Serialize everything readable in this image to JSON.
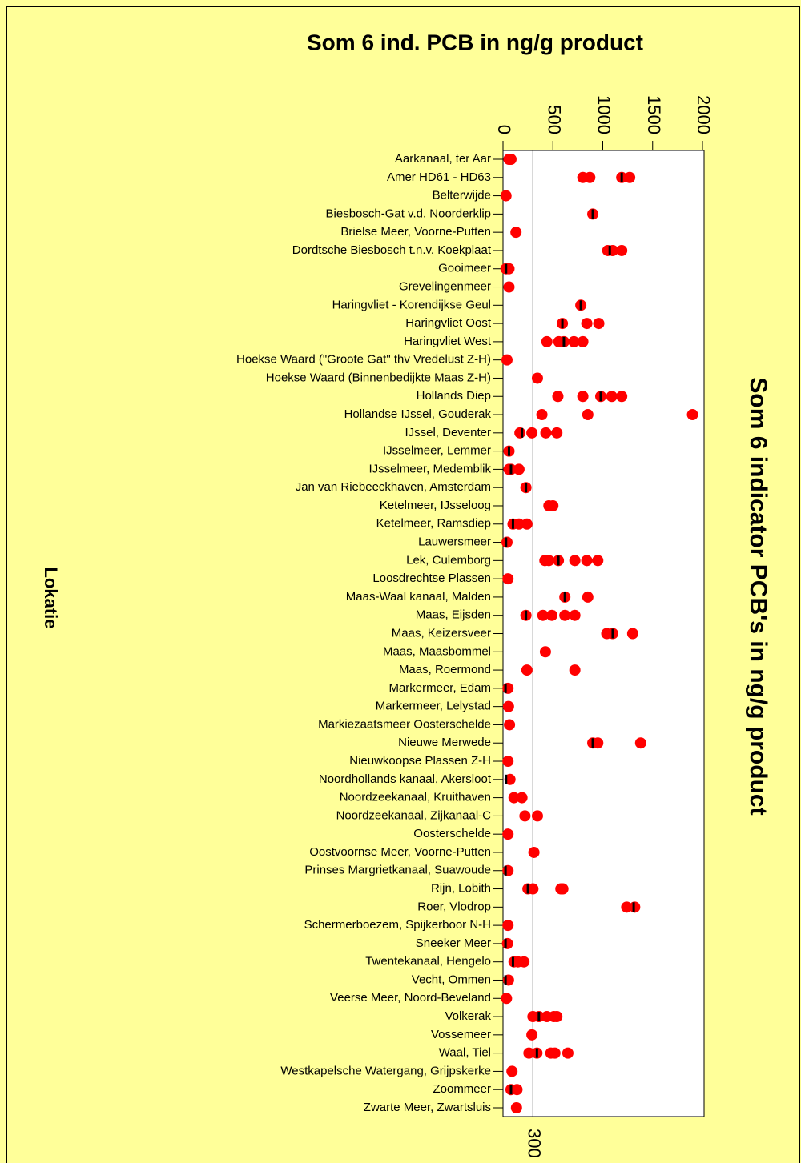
{
  "chart_data": {
    "type": "dotplot",
    "title": "Som 6 ind. PCB in ng/g product",
    "value_axis_label": "Som 6 indicator PCB's in ng/g product",
    "category_axis_label": "Lokatie",
    "categories": [
      "Aarkanaal, ter Aar",
      "Amer HD61 - HD63",
      "Belterwijde",
      "Biesbosch-Gat v.d. Noorderklip",
      "Brielse Meer, Voorne-Putten",
      "Dordtsche Biesbosch t.n.v. Koekplaat",
      "Gooimeer",
      "Grevelingenmeer",
      "Haringvliet - Korendijkse Geul",
      "Haringvliet Oost",
      "Haringvliet West",
      "Hoekse Waard (\"Groote Gat\" thv Vredelust Z-H)",
      "Hoekse Waard (Binnenbedijkte Maas Z-H)",
      "Hollands Diep",
      "Hollandse IJssel, Gouderak",
      "IJssel, Deventer",
      "IJsselmeer, Lemmer",
      "IJsselmeer, Medemblik",
      "Jan van Riebeeckhaven, Amsterdam",
      "Ketelmeer, IJsseloog",
      "Ketelmeer, Ramsdiep",
      "Lauwersmeer",
      "Lek, Culemborg",
      "Loosdrechtse Plassen",
      "Maas-Waal kanaal, Malden",
      "Maas, Eijsden",
      "Maas, Keizersveer",
      "Maas, Maasbommel",
      "Maas, Roermond",
      "Markermeer, Edam",
      "Markermeer, Lelystad",
      "Markiezaatsmeer Oosterschelde",
      "Nieuwe Merwede",
      "Nieuwkoopse Plassen Z-H",
      "Noordhollands kanaal, Akersloot",
      "Noordzeekanaal, Kruithaven",
      "Noordzeekanaal, Zijkanaal-C",
      "Oosterschelde",
      "Oostvoornse Meer, Voorne-Putten",
      "Prinses Margrietkanaal, Suawoude",
      "Rijn, Lobith",
      "Roer, Vlodrop",
      "Schermerboezem, Spijkerboor N-H",
      "Sneeker Meer",
      "Twentekanaal, Hengelo",
      "Vecht, Ommen",
      "Veerse Meer, Noord-Beveland",
      "Volkerak",
      "Vossemeer",
      "Waal, Tiel",
      "Westkapelsche Watergang, Grijpskerke",
      "Zoommeer",
      "Zwarte Meer, Zwartsluis"
    ],
    "values": [
      [
        60,
        80
      ],
      [
        800,
        870,
        1190,
        1270
      ],
      [
        30
      ],
      [
        900
      ],
      [
        130
      ],
      [
        1050,
        1100,
        1190
      ],
      [
        30,
        60
      ],
      [
        60
      ],
      [
        780
      ],
      [
        595,
        840,
        960
      ],
      [
        440,
        560,
        610,
        710,
        800
      ],
      [
        40
      ],
      [
        345
      ],
      [
        550,
        800,
        980,
        1090,
        1190
      ],
      [
        390,
        850,
        1900
      ],
      [
        170,
        290,
        430,
        540
      ],
      [
        60
      ],
      [
        60,
        80,
        160
      ],
      [
        230
      ],
      [
        460,
        500
      ],
      [
        100,
        160,
        240
      ],
      [
        40
      ],
      [
        420,
        460,
        555,
        720,
        840,
        950
      ],
      [
        50
      ],
      [
        620,
        850
      ],
      [
        230,
        400,
        490,
        620,
        720
      ],
      [
        1040,
        1100,
        1300
      ],
      [
        425
      ],
      [
        240,
        720
      ],
      [
        50
      ],
      [
        55
      ],
      [
        65
      ],
      [
        900,
        950,
        1380
      ],
      [
        50
      ],
      [
        70
      ],
      [
        110,
        190
      ],
      [
        220,
        345
      ],
      [
        50
      ],
      [
        310
      ],
      [
        50
      ],
      [
        250,
        300,
        580,
        600
      ],
      [
        1240,
        1320
      ],
      [
        50
      ],
      [
        45
      ],
      [
        110,
        150,
        210
      ],
      [
        55
      ],
      [
        35
      ],
      [
        300,
        360,
        440,
        510,
        540
      ],
      [
        290
      ],
      [
        260,
        340,
        480,
        520,
        650
      ],
      [
        90
      ],
      [
        80,
        140
      ],
      [
        135
      ]
    ],
    "medians": [
      null,
      1190,
      null,
      900,
      null,
      1070,
      30,
      null,
      780,
      595,
      610,
      null,
      null,
      980,
      null,
      190,
      60,
      80,
      230,
      null,
      100,
      30,
      555,
      null,
      620,
      230,
      1100,
      null,
      null,
      25,
      null,
      null,
      900,
      null,
      30,
      null,
      null,
      null,
      null,
      25,
      250,
      1310,
      null,
      25,
      100,
      25,
      null,
      360,
      null,
      340,
      null,
      80,
      null
    ],
    "color": "#ff0000",
    "median_color": "#000000",
    "xlim": [
      0,
      2000
    ],
    "xticks": [
      0,
      500,
      1000,
      1500,
      2000
    ],
    "reference_line": 300,
    "grid": false
  }
}
